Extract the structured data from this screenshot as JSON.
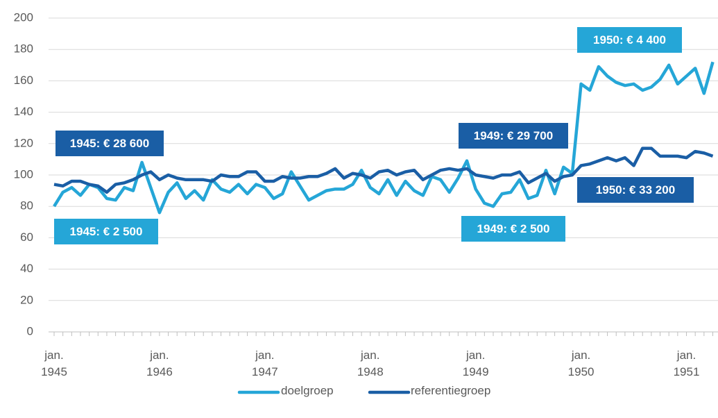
{
  "chart_data": {
    "type": "line",
    "categories": [
      "jan. 1945",
      null,
      null,
      null,
      null,
      null,
      null,
      null,
      null,
      null,
      null,
      null,
      "jan. 1946",
      null,
      null,
      null,
      null,
      null,
      null,
      null,
      null,
      null,
      null,
      null,
      "jan. 1947",
      null,
      null,
      null,
      null,
      null,
      null,
      null,
      null,
      null,
      null,
      null,
      "jan. 1948",
      null,
      null,
      null,
      null,
      null,
      null,
      null,
      null,
      null,
      null,
      null,
      "jan. 1949",
      null,
      null,
      null,
      null,
      null,
      null,
      null,
      null,
      null,
      null,
      null,
      "jan. 1950",
      null,
      null,
      null,
      null,
      null,
      null,
      null,
      null,
      null,
      null,
      null,
      "jan. 1951",
      null,
      null,
      null
    ],
    "series": [
      {
        "name": "doelgroep",
        "color": "#25a6d7",
        "values": [
          80,
          89,
          92,
          87,
          94,
          92,
          85,
          84,
          92,
          90,
          108,
          92,
          76,
          89,
          95,
          85,
          90,
          84,
          97,
          91,
          89,
          94,
          88,
          94,
          92,
          85,
          88,
          102,
          93,
          84,
          87,
          90,
          91,
          91,
          94,
          103,
          92,
          88,
          97,
          87,
          96,
          90,
          87,
          99,
          97,
          89,
          98,
          109,
          91,
          82,
          80,
          88,
          89,
          97,
          85,
          87,
          103,
          88,
          105,
          101,
          158,
          154,
          169,
          163,
          159,
          157,
          158,
          154,
          156,
          161,
          170,
          158,
          163,
          168,
          152,
          172
        ]
      },
      {
        "name": "referentiegroep",
        "color": "#1a5ea5",
        "values": [
          94,
          93,
          96,
          96,
          94,
          93,
          89,
          94,
          95,
          97,
          100,
          102,
          97,
          100,
          98,
          97,
          97,
          97,
          96,
          100,
          99,
          99,
          102,
          102,
          96,
          96,
          99,
          98,
          98,
          99,
          99,
          101,
          104,
          98,
          101,
          100,
          98,
          102,
          103,
          100,
          102,
          103,
          97,
          100,
          103,
          104,
          103,
          104,
          100,
          99,
          98,
          100,
          100,
          102,
          95,
          98,
          101,
          96,
          99,
          100,
          106,
          107,
          109,
          111,
          109,
          111,
          106,
          117,
          117,
          112,
          112,
          112,
          111,
          115,
          114,
          112
        ]
      }
    ],
    "ylim": [
      0,
      200
    ],
    "yticks": [
      0,
      20,
      40,
      60,
      80,
      100,
      120,
      140,
      160,
      180,
      200
    ],
    "grid": true,
    "legend": "bottom",
    "annotations": [
      {
        "text": "1945: € 28 600",
        "color": "#1a5ea5"
      },
      {
        "text": "1945: € 2 500",
        "color": "#25a6d7"
      },
      {
        "text": "1949: € 29 700",
        "color": "#1a5ea5"
      },
      {
        "text": "1949: € 2 500",
        "color": "#25a6d7"
      },
      {
        "text": "1950: € 4 400",
        "color": "#25a6d7"
      },
      {
        "text": "1950: € 33 200",
        "color": "#1a5ea5"
      }
    ]
  }
}
